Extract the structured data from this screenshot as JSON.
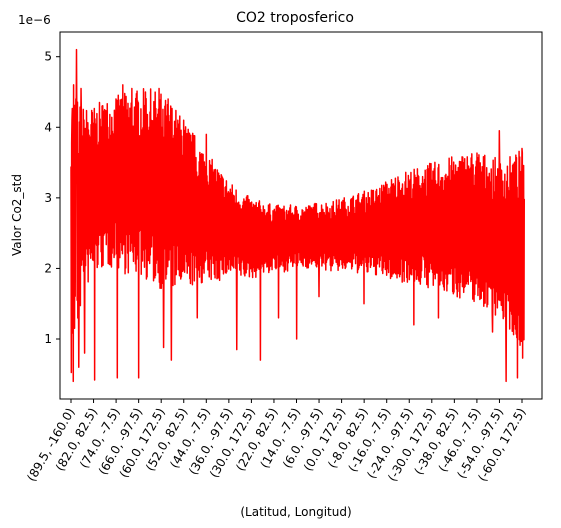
{
  "chart_data": {
    "type": "line",
    "title": "CO2 troposferico",
    "xlabel": "(Latitud, Longitud)",
    "ylabel": "Valor Co2_std",
    "y_scale_label": "1e−6",
    "y_ticks": [
      "1",
      "2",
      "3",
      "4",
      "5"
    ],
    "y_tick_values": [
      1,
      2,
      3,
      4,
      5
    ],
    "ylim": [
      0.15,
      5.35
    ],
    "x_tick_labels": [
      "(89.5, -160.0)",
      "(82.0, 82.5)",
      "(74.0, -7.5)",
      "(66.0, -97.5)",
      "(60.0, 172.5)",
      "(52.0, 82.5)",
      "(44.0, -7.5)",
      "(36.0, -97.5)",
      "(30.0, 172.5)",
      "(22.0, 82.5)",
      "(14.0, -7.5)",
      "(6.0, -97.5)",
      "(0.0, 172.5)",
      "(-8.0, 82.5)",
      "(-16.0, -7.5)",
      "(-24.0, -97.5)",
      "(-30.0, 172.5)",
      "(-38.0, 82.5)",
      "(-46.0, -7.5)",
      "(-54.0, -97.5)",
      "(-60.0, 172.5)"
    ],
    "series": [
      {
        "color": "#ff0000",
        "envelope_x": [
          0,
          0.5,
          1,
          1.5,
          2,
          2.5,
          3,
          3.5,
          4,
          4.5,
          5,
          5.5,
          6,
          6.5,
          7,
          7.5,
          8,
          8.5,
          9,
          9.5,
          10,
          10.5,
          11,
          11.5,
          12,
          12.5,
          13,
          13.5,
          14,
          14.5,
          15,
          15.5,
          16,
          16.5,
          17,
          17.5,
          18,
          18.5,
          19,
          19.5,
          20,
          20.1
        ],
        "envelope_high": [
          4.6,
          4.3,
          4.3,
          4.4,
          4.45,
          4.5,
          4.55,
          4.55,
          4.5,
          4.35,
          4.1,
          3.9,
          3.65,
          3.45,
          3.25,
          3.1,
          3.0,
          2.95,
          2.9,
          2.9,
          2.9,
          2.9,
          2.95,
          2.95,
          3.0,
          3.05,
          3.1,
          3.15,
          3.25,
          3.35,
          3.4,
          3.45,
          3.5,
          3.55,
          3.6,
          3.65,
          3.7,
          3.6,
          3.55,
          3.6,
          3.7,
          3.4
        ],
        "envelope_low": [
          0.4,
          1.6,
          1.9,
          2.0,
          2.0,
          1.9,
          1.9,
          1.8,
          1.7,
          1.7,
          1.7,
          1.75,
          1.8,
          1.8,
          1.9,
          1.85,
          1.85,
          1.9,
          1.95,
          1.95,
          2.0,
          2.0,
          2.0,
          1.95,
          1.95,
          1.95,
          1.9,
          1.9,
          1.85,
          1.8,
          1.8,
          1.75,
          1.7,
          1.65,
          1.6,
          1.55,
          1.5,
          1.4,
          1.3,
          1.1,
          0.8,
          0.5
        ],
        "spikes_down": [
          [
            0.1,
            0.4
          ],
          [
            0.35,
            0.6
          ],
          [
            0.6,
            0.8
          ],
          [
            1.05,
            0.42
          ],
          [
            2.05,
            0.45
          ],
          [
            3.0,
            0.45
          ],
          [
            4.1,
            0.88
          ],
          [
            4.45,
            0.7
          ],
          [
            5.0,
            1.1
          ],
          [
            5.6,
            1.3
          ],
          [
            7.35,
            0.85
          ],
          [
            8.4,
            0.7
          ],
          [
            9.2,
            1.3
          ],
          [
            10.0,
            1.0
          ],
          [
            11.0,
            1.6
          ],
          [
            13.0,
            1.5
          ],
          [
            15.2,
            1.2
          ],
          [
            16.3,
            1.3
          ],
          [
            18.7,
            1.1
          ],
          [
            19.3,
            0.4
          ],
          [
            19.8,
            0.45
          ],
          [
            20.0,
            0.5
          ]
        ],
        "spikes_up": [
          [
            0.05,
            4.1
          ],
          [
            0.12,
            4.6
          ],
          [
            0.22,
            4.4
          ],
          [
            0.25,
            5.1
          ],
          [
            0.45,
            4.55
          ],
          [
            1.5,
            4.25
          ],
          [
            2.0,
            4.4
          ],
          [
            2.3,
            4.6
          ],
          [
            2.7,
            4.55
          ],
          [
            3.3,
            4.5
          ],
          [
            3.9,
            4.55
          ],
          [
            4.3,
            4.4
          ],
          [
            5.0,
            4.1
          ],
          [
            6.0,
            3.9
          ],
          [
            19.0,
            3.95
          ],
          [
            20.0,
            3.7
          ]
        ]
      }
    ]
  }
}
